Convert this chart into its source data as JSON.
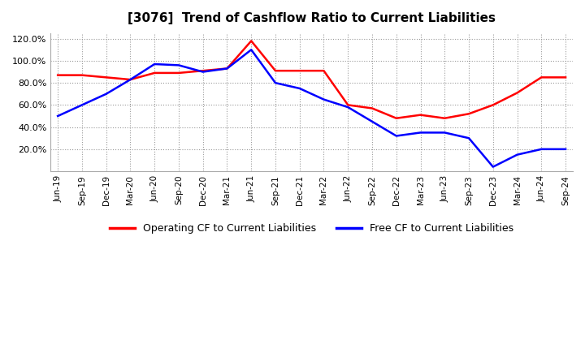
{
  "title": "[3076]  Trend of Cashflow Ratio to Current Liabilities",
  "x_labels": [
    "Jun-19",
    "Sep-19",
    "Dec-19",
    "Mar-20",
    "Jun-20",
    "Sep-20",
    "Dec-20",
    "Mar-21",
    "Jun-21",
    "Sep-21",
    "Dec-21",
    "Mar-22",
    "Jun-22",
    "Sep-22",
    "Dec-22",
    "Mar-23",
    "Jun-23",
    "Sep-23",
    "Dec-23",
    "Mar-24",
    "Jun-24",
    "Sep-24"
  ],
  "operating_cf": [
    87,
    87,
    85,
    83,
    89,
    89,
    91,
    93,
    118,
    91,
    91,
    91,
    60,
    57,
    48,
    51,
    48,
    52,
    60,
    71,
    85,
    85
  ],
  "free_cf": [
    50,
    60,
    70,
    83,
    97,
    96,
    90,
    93,
    110,
    80,
    75,
    65,
    58,
    45,
    32,
    35,
    35,
    30,
    4,
    15,
    20,
    20
  ],
  "operating_color": "#FF0000",
  "free_color": "#0000FF",
  "ylim_min": 0,
  "ylim_max": 125,
  "yticks": [
    20,
    40,
    60,
    80,
    100,
    120
  ],
  "background_color": "#FFFFFF",
  "grid_color": "#999999",
  "legend_labels": [
    "Operating CF to Current Liabilities",
    "Free CF to Current Liabilities"
  ]
}
